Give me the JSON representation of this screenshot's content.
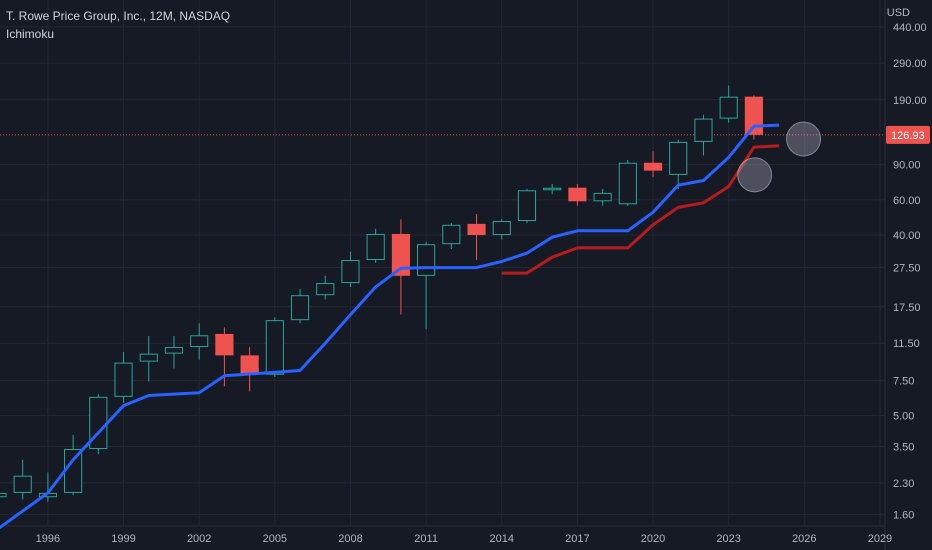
{
  "header": {
    "title": "T. Rowe Price Group, Inc., 12M, NASDAQ",
    "indicator": "Ichimoku"
  },
  "price_axis": {
    "currency": "USD"
  },
  "chart_data": {
    "type": "candlestick",
    "y_scale": "log",
    "ylim": [
      1.4,
      600
    ],
    "xlim": [
      1994.1,
      2029.2
    ],
    "y_ticks": [
      "440.00",
      "290.00",
      "190.00",
      "90.00",
      "60.00",
      "40.00",
      "27.50",
      "17.50",
      "11.50",
      "7.50",
      "5.00",
      "3.50",
      "2.30",
      "1.60"
    ],
    "x_ticks": [
      "1996",
      "1999",
      "2002",
      "2005",
      "2008",
      "2011",
      "2014",
      "2017",
      "2020",
      "2023",
      "2026",
      "2029"
    ],
    "last_price": "126.93",
    "colors": {
      "up": "#26a69a",
      "down": "#ef5350",
      "conversion_line": "#2962ff",
      "base_line": "#b71c1c",
      "price_line": "#ef5350"
    },
    "candles": [
      {
        "year": 1994,
        "open": 1.95,
        "high": 2.25,
        "low": 1.88,
        "close": 2.05
      },
      {
        "year": 1995,
        "open": 2.05,
        "high": 3.0,
        "low": 1.9,
        "close": 2.5
      },
      {
        "year": 1996,
        "open": 1.95,
        "high": 2.6,
        "low": 1.85,
        "close": 2.05
      },
      {
        "year": 1997,
        "open": 2.05,
        "high": 4.0,
        "low": 2.0,
        "close": 3.4
      },
      {
        "year": 1998,
        "open": 3.4,
        "high": 6.4,
        "low": 3.2,
        "close": 6.2
      },
      {
        "year": 1999,
        "open": 6.2,
        "high": 10.4,
        "low": 5.8,
        "close": 9.2
      },
      {
        "year": 2000,
        "open": 9.3,
        "high": 12.5,
        "low": 7.4,
        "close": 10.2
      },
      {
        "year": 2001,
        "open": 10.2,
        "high": 12.5,
        "low": 8.6,
        "close": 11.0
      },
      {
        "year": 2002,
        "open": 11.0,
        "high": 14.5,
        "low": 9.5,
        "close": 12.6
      },
      {
        "year": 2003,
        "open": 12.8,
        "high": 13.8,
        "low": 7.0,
        "close": 10.0
      },
      {
        "year": 2004,
        "open": 10.0,
        "high": 11.0,
        "low": 6.6,
        "close": 8.0
      },
      {
        "year": 2005,
        "open": 8.0,
        "high": 15.5,
        "low": 7.8,
        "close": 15.0
      },
      {
        "year": 2006,
        "open": 15.0,
        "high": 21.5,
        "low": 14.5,
        "close": 20.0
      },
      {
        "year": 2007,
        "open": 20.0,
        "high": 25.0,
        "low": 19.0,
        "close": 23.0
      },
      {
        "year": 2008,
        "open": 23.0,
        "high": 33.0,
        "low": 22.0,
        "close": 30.0
      },
      {
        "year": 2009,
        "open": 30.0,
        "high": 43.0,
        "low": 29.0,
        "close": 40.5
      },
      {
        "year": 2010,
        "open": 40.5,
        "high": 48.0,
        "low": 16.0,
        "close": 25.0
      },
      {
        "year": 2011,
        "open": 25.0,
        "high": 37.0,
        "low": 13.5,
        "close": 36.0
      },
      {
        "year": 2012,
        "open": 36.0,
        "high": 46.0,
        "low": 34.0,
        "close": 45.0
      },
      {
        "year": 2013,
        "open": 45.5,
        "high": 51.0,
        "low": 30.0,
        "close": 40.0
      },
      {
        "year": 2014,
        "open": 40.0,
        "high": 48.0,
        "low": 38.0,
        "close": 47.0
      },
      {
        "year": 2015,
        "open": 47.0,
        "high": 68.0,
        "low": 46.0,
        "close": 67.0
      },
      {
        "year": 2016,
        "open": 67.0,
        "high": 72.0,
        "low": 64.0,
        "close": 69.0
      },
      {
        "year": 2017,
        "open": 69.0,
        "high": 72.0,
        "low": 56.0,
        "close": 59.0
      },
      {
        "year": 2018,
        "open": 59.0,
        "high": 68.0,
        "low": 56.0,
        "close": 65.0
      },
      {
        "year": 2019,
        "open": 57.0,
        "high": 95.0,
        "low": 56.0,
        "close": 92.0
      },
      {
        "year": 2020,
        "open": 92.0,
        "high": 105.0,
        "low": 78.0,
        "close": 84.0
      },
      {
        "year": 2021,
        "open": 80.0,
        "high": 120.0,
        "low": 68.0,
        "close": 117.0
      },
      {
        "year": 2022,
        "open": 117.0,
        "high": 160.0,
        "low": 100.0,
        "close": 153.0
      },
      {
        "year": 2023,
        "open": 153.0,
        "high": 224.0,
        "low": 146.0,
        "close": 197.0
      },
      {
        "year": 2024,
        "open": 197.0,
        "high": 200.0,
        "low": 120.0,
        "close": 126.93
      }
    ],
    "conversion_line": [
      {
        "year": 1994,
        "value": 1.35
      },
      {
        "year": 1996,
        "value": 2.05
      },
      {
        "year": 1997,
        "value": 3.0
      },
      {
        "year": 1999,
        "value": 5.6
      },
      {
        "year": 2000,
        "value": 6.3
      },
      {
        "year": 2002,
        "value": 6.5
      },
      {
        "year": 2003,
        "value": 7.9
      },
      {
        "year": 2006,
        "value": 8.4
      },
      {
        "year": 2007,
        "value": 11.5
      },
      {
        "year": 2008,
        "value": 16.0
      },
      {
        "year": 2009,
        "value": 22.0
      },
      {
        "year": 2010,
        "value": 27.3
      },
      {
        "year": 2011,
        "value": 27.5
      },
      {
        "year": 2013,
        "value": 27.5
      },
      {
        "year": 2014,
        "value": 29.5
      },
      {
        "year": 2015,
        "value": 32.5
      },
      {
        "year": 2016,
        "value": 39.0
      },
      {
        "year": 2017,
        "value": 42.0
      },
      {
        "year": 2019,
        "value": 42.0
      },
      {
        "year": 2020,
        "value": 52.0
      },
      {
        "year": 2021,
        "value": 71.0
      },
      {
        "year": 2022,
        "value": 75.0
      },
      {
        "year": 2023,
        "value": 98.0
      },
      {
        "year": 2024,
        "value": 140.0
      },
      {
        "year": 2025,
        "value": 142.0
      }
    ],
    "base_line": [
      {
        "year": 2014,
        "value": 25.8
      },
      {
        "year": 2015,
        "value": 25.8
      },
      {
        "year": 2016,
        "value": 31.0
      },
      {
        "year": 2017,
        "value": 34.5
      },
      {
        "year": 2019,
        "value": 34.5
      },
      {
        "year": 2020,
        "value": 45.0
      },
      {
        "year": 2021,
        "value": 55.0
      },
      {
        "year": 2022,
        "value": 58.0
      },
      {
        "year": 2023,
        "value": 70.0
      },
      {
        "year": 2024,
        "value": 110.0
      },
      {
        "year": 2025,
        "value": 112.0
      }
    ],
    "annotations": [
      {
        "shape": "circle",
        "year": 2024.03,
        "value": 80
      },
      {
        "shape": "circle",
        "year": 2025.97,
        "value": 121
      }
    ]
  }
}
